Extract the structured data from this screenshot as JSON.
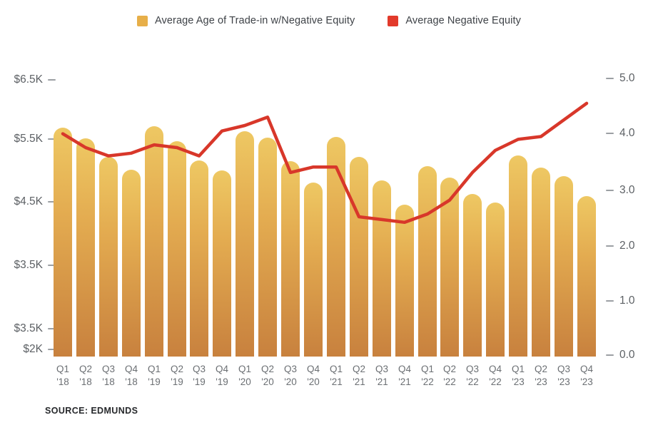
{
  "legend": {
    "items": [
      {
        "label": "Average Age of Trade-in w/Negative Equity",
        "color": "#e7af49"
      },
      {
        "label": "Average Negative Equity",
        "color": "#e23a2b"
      }
    ]
  },
  "source": {
    "text": "SOURCE: EDMUNDS"
  },
  "colors": {
    "bar_top": "#eec863",
    "bar_bottom": "#c8813e",
    "line": "#d8372a",
    "axis_text": "#5d6165",
    "tick": "#9b9fa3"
  },
  "chart_data": {
    "type": "combo",
    "grid": false,
    "legend_position": "top-center",
    "categories": [
      {
        "q": "Q1",
        "year": "'18"
      },
      {
        "q": "Q2",
        "year": "'18"
      },
      {
        "q": "Q3",
        "year": "'18"
      },
      {
        "q": "Q4",
        "year": "'18"
      },
      {
        "q": "Q1",
        "year": "'19"
      },
      {
        "q": "Q2",
        "year": "'19"
      },
      {
        "q": "Q3",
        "year": "'19"
      },
      {
        "q": "Q4",
        "year": "'19"
      },
      {
        "q": "Q1",
        "year": "'20"
      },
      {
        "q": "Q2",
        "year": "'20"
      },
      {
        "q": "Q3",
        "year": "'20"
      },
      {
        "q": "Q4",
        "year": "'20"
      },
      {
        "q": "Q1",
        "year": "'21"
      },
      {
        "q": "Q2",
        "year": "'21"
      },
      {
        "q": "Q3",
        "year": "'21"
      },
      {
        "q": "Q4",
        "year": "'21"
      },
      {
        "q": "Q1",
        "year": "'22"
      },
      {
        "q": "Q2",
        "year": "'22"
      },
      {
        "q": "Q3",
        "year": "'22"
      },
      {
        "q": "Q4",
        "year": "'22"
      },
      {
        "q": "Q1",
        "year": "'23"
      },
      {
        "q": "Q2",
        "year": "'23"
      },
      {
        "q": "Q3",
        "year": "'23"
      },
      {
        "q": "Q4",
        "year": "'23"
      }
    ],
    "series": [
      {
        "name": "Average Age of Trade-in w/Negative Equity",
        "type": "bar",
        "axis": "left",
        "unit": "thousand dollars",
        "values": [
          5.68,
          5.51,
          5.22,
          5.01,
          5.7,
          5.47,
          5.16,
          5.0,
          5.63,
          5.52,
          5.15,
          4.81,
          5.53,
          5.22,
          4.84,
          4.45,
          5.07,
          4.89,
          4.63,
          4.49,
          5.24,
          5.05,
          4.91,
          4.59
        ]
      },
      {
        "name": "Average Negative Equity",
        "type": "line",
        "axis": "right",
        "values": [
          4.0,
          3.75,
          3.6,
          3.65,
          3.8,
          3.75,
          3.6,
          4.05,
          4.15,
          4.3,
          3.3,
          3.4,
          3.4,
          2.5,
          2.45,
          2.4,
          2.55,
          2.8,
          3.3,
          3.7,
          3.9,
          3.95,
          4.25,
          4.55
        ]
      }
    ],
    "left_axis": {
      "tick_labels": [
        "$6.5K",
        "$5.5K",
        "$4.5K",
        "$3.5K",
        "$3.5K",
        "$2K"
      ],
      "range_hint": "$2K to $6.5K"
    },
    "right_axis": {
      "tick_labels": [
        "5.0",
        "4.0",
        "3.0",
        "2.0",
        "1.0",
        "0.0"
      ],
      "range": [
        0,
        5
      ]
    }
  }
}
